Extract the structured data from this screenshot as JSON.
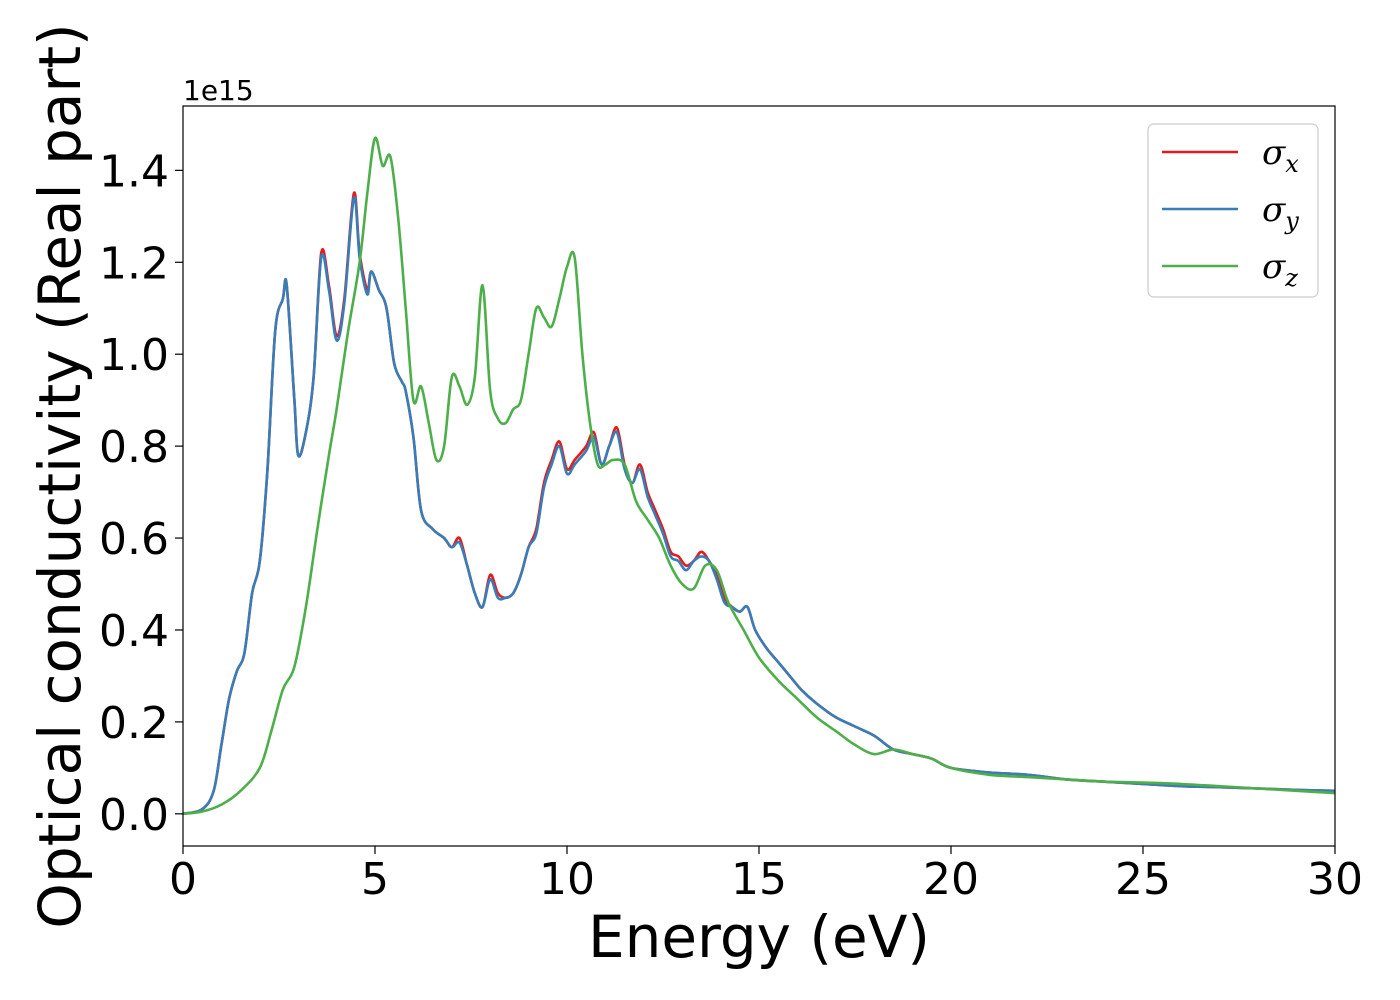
{
  "chart_data": {
    "type": "line",
    "title": "",
    "xlabel": "Energy (eV)",
    "ylabel": "Optical conductivity (Real part)",
    "y_offset_label": "1e15",
    "xlim": [
      0,
      30
    ],
    "ylim": [
      -0.07,
      1.54
    ],
    "xticks": [
      0,
      5,
      10,
      15,
      20,
      25,
      30
    ],
    "xtick_labels": [
      "0",
      "5",
      "10",
      "15",
      "20",
      "25",
      "30"
    ],
    "yticks": [
      0.0,
      0.2,
      0.4,
      0.6,
      0.8,
      1.0,
      1.2,
      1.4
    ],
    "ytick_labels": [
      "0.0",
      "0.2",
      "0.4",
      "0.6",
      "0.8",
      "1.0",
      "1.2",
      "1.4"
    ],
    "grid": false,
    "legend_position": "top-right",
    "series": [
      {
        "name": "σ",
        "subscript": "x",
        "color": "#e41a1c",
        "x": [
          0,
          0.5,
          0.8,
          1.0,
          1.2,
          1.4,
          1.6,
          1.8,
          2.0,
          2.2,
          2.4,
          2.6,
          2.7,
          2.9,
          3.0,
          3.2,
          3.4,
          3.6,
          3.8,
          4.0,
          4.2,
          4.45,
          4.6,
          4.8,
          4.9,
          5.1,
          5.3,
          5.5,
          5.7,
          5.8,
          6.0,
          6.2,
          6.5,
          6.8,
          7.0,
          7.2,
          7.4,
          7.6,
          7.8,
          8.0,
          8.2,
          8.4,
          8.6,
          8.8,
          9.0,
          9.2,
          9.4,
          9.6,
          9.8,
          10.0,
          10.2,
          10.5,
          10.7,
          10.9,
          11.1,
          11.3,
          11.5,
          11.7,
          11.9,
          12.1,
          12.3,
          12.5,
          12.7,
          12.9,
          13.1,
          13.3,
          13.5,
          13.7,
          13.9,
          14.1,
          14.3,
          14.5,
          14.7,
          14.9,
          15.2,
          15.5,
          15.8,
          16.1,
          16.5,
          17.0,
          17.5,
          18.0,
          18.5,
          19.0,
          19.5,
          20.0,
          21.0,
          22.0,
          23.0,
          24.0,
          25.0,
          26.0,
          27.0,
          28.0,
          29.0,
          30.0
        ],
        "y": [
          0,
          0.01,
          0.05,
          0.15,
          0.25,
          0.31,
          0.35,
          0.48,
          0.55,
          0.75,
          1.05,
          1.12,
          1.15,
          0.9,
          0.78,
          0.83,
          0.95,
          1.22,
          1.15,
          1.04,
          1.12,
          1.35,
          1.22,
          1.14,
          1.18,
          1.14,
          1.1,
          0.98,
          0.94,
          0.92,
          0.82,
          0.66,
          0.62,
          0.6,
          0.58,
          0.6,
          0.54,
          0.48,
          0.45,
          0.52,
          0.48,
          0.47,
          0.48,
          0.52,
          0.58,
          0.62,
          0.72,
          0.77,
          0.81,
          0.75,
          0.77,
          0.8,
          0.83,
          0.76,
          0.8,
          0.84,
          0.76,
          0.72,
          0.76,
          0.7,
          0.66,
          0.62,
          0.57,
          0.56,
          0.54,
          0.55,
          0.57,
          0.55,
          0.52,
          0.47,
          0.45,
          0.44,
          0.45,
          0.4,
          0.36,
          0.33,
          0.3,
          0.27,
          0.24,
          0.21,
          0.19,
          0.17,
          0.14,
          0.13,
          0.12,
          0.1,
          0.09,
          0.085,
          0.075,
          0.07,
          0.065,
          0.06,
          0.058,
          0.055,
          0.052,
          0.05
        ]
      },
      {
        "name": "σ",
        "subscript": "y",
        "color": "#377eb8",
        "x": [
          0,
          0.5,
          0.8,
          1.0,
          1.2,
          1.4,
          1.6,
          1.8,
          2.0,
          2.2,
          2.4,
          2.6,
          2.7,
          2.9,
          3.0,
          3.2,
          3.4,
          3.6,
          3.8,
          4.0,
          4.2,
          4.45,
          4.6,
          4.8,
          4.9,
          5.1,
          5.3,
          5.5,
          5.7,
          5.8,
          6.0,
          6.2,
          6.5,
          6.8,
          7.0,
          7.2,
          7.4,
          7.6,
          7.8,
          8.0,
          8.2,
          8.4,
          8.6,
          8.8,
          9.0,
          9.2,
          9.4,
          9.6,
          9.8,
          10.0,
          10.2,
          10.5,
          10.7,
          10.9,
          11.1,
          11.3,
          11.5,
          11.7,
          11.9,
          12.1,
          12.3,
          12.5,
          12.7,
          12.9,
          13.1,
          13.3,
          13.5,
          13.7,
          13.9,
          14.1,
          14.3,
          14.5,
          14.7,
          14.9,
          15.2,
          15.5,
          15.8,
          16.1,
          16.5,
          17.0,
          17.5,
          18.0,
          18.5,
          19.0,
          19.5,
          20.0,
          21.0,
          22.0,
          23.0,
          24.0,
          25.0,
          26.0,
          27.0,
          28.0,
          29.0,
          30.0
        ],
        "y": [
          0,
          0.01,
          0.05,
          0.15,
          0.25,
          0.31,
          0.35,
          0.48,
          0.55,
          0.75,
          1.05,
          1.12,
          1.15,
          0.9,
          0.78,
          0.83,
          0.95,
          1.21,
          1.14,
          1.03,
          1.11,
          1.34,
          1.21,
          1.13,
          1.18,
          1.14,
          1.1,
          0.98,
          0.94,
          0.92,
          0.82,
          0.66,
          0.62,
          0.6,
          0.58,
          0.59,
          0.54,
          0.48,
          0.45,
          0.51,
          0.47,
          0.47,
          0.48,
          0.52,
          0.58,
          0.61,
          0.71,
          0.76,
          0.8,
          0.74,
          0.76,
          0.79,
          0.82,
          0.76,
          0.8,
          0.83,
          0.75,
          0.72,
          0.75,
          0.69,
          0.65,
          0.61,
          0.56,
          0.55,
          0.53,
          0.55,
          0.56,
          0.55,
          0.51,
          0.46,
          0.45,
          0.44,
          0.45,
          0.4,
          0.36,
          0.33,
          0.3,
          0.27,
          0.24,
          0.21,
          0.19,
          0.17,
          0.14,
          0.13,
          0.12,
          0.1,
          0.09,
          0.085,
          0.075,
          0.07,
          0.065,
          0.06,
          0.058,
          0.055,
          0.052,
          0.05
        ]
      },
      {
        "name": "σ",
        "subscript": "z",
        "color": "#4daf4a",
        "x": [
          0,
          0.5,
          1.0,
          1.5,
          2.0,
          2.3,
          2.6,
          2.9,
          3.2,
          3.5,
          3.8,
          4.0,
          4.3,
          4.6,
          4.8,
          5.0,
          5.2,
          5.4,
          5.6,
          5.8,
          6.0,
          6.2,
          6.4,
          6.6,
          6.8,
          7.0,
          7.2,
          7.4,
          7.6,
          7.8,
          8.0,
          8.2,
          8.4,
          8.6,
          8.8,
          9.0,
          9.2,
          9.4,
          9.6,
          9.8,
          10.0,
          10.2,
          10.4,
          10.6,
          10.8,
          11.0,
          11.2,
          11.5,
          11.8,
          12.1,
          12.4,
          12.7,
          13.0,
          13.3,
          13.6,
          13.9,
          14.2,
          14.6,
          15.0,
          15.5,
          16.0,
          16.5,
          17.0,
          17.5,
          18.0,
          18.5,
          19.0,
          19.5,
          20.0,
          21.0,
          22.0,
          23.0,
          24.0,
          25.0,
          26.0,
          27.0,
          28.0,
          29.0,
          30.0
        ],
        "y": [
          0,
          0.005,
          0.02,
          0.05,
          0.1,
          0.18,
          0.27,
          0.32,
          0.45,
          0.62,
          0.78,
          0.88,
          1.05,
          1.2,
          1.35,
          1.47,
          1.41,
          1.43,
          1.3,
          1.1,
          0.9,
          0.93,
          0.85,
          0.77,
          0.8,
          0.95,
          0.93,
          0.89,
          0.95,
          1.15,
          0.92,
          0.86,
          0.85,
          0.88,
          0.9,
          1.0,
          1.1,
          1.08,
          1.06,
          1.12,
          1.19,
          1.21,
          1.0,
          0.85,
          0.76,
          0.76,
          0.77,
          0.76,
          0.68,
          0.64,
          0.6,
          0.54,
          0.5,
          0.49,
          0.54,
          0.53,
          0.46,
          0.4,
          0.34,
          0.29,
          0.25,
          0.21,
          0.18,
          0.15,
          0.13,
          0.14,
          0.13,
          0.12,
          0.1,
          0.085,
          0.08,
          0.075,
          0.07,
          0.068,
          0.065,
          0.06,
          0.055,
          0.05,
          0.045
        ]
      }
    ]
  }
}
